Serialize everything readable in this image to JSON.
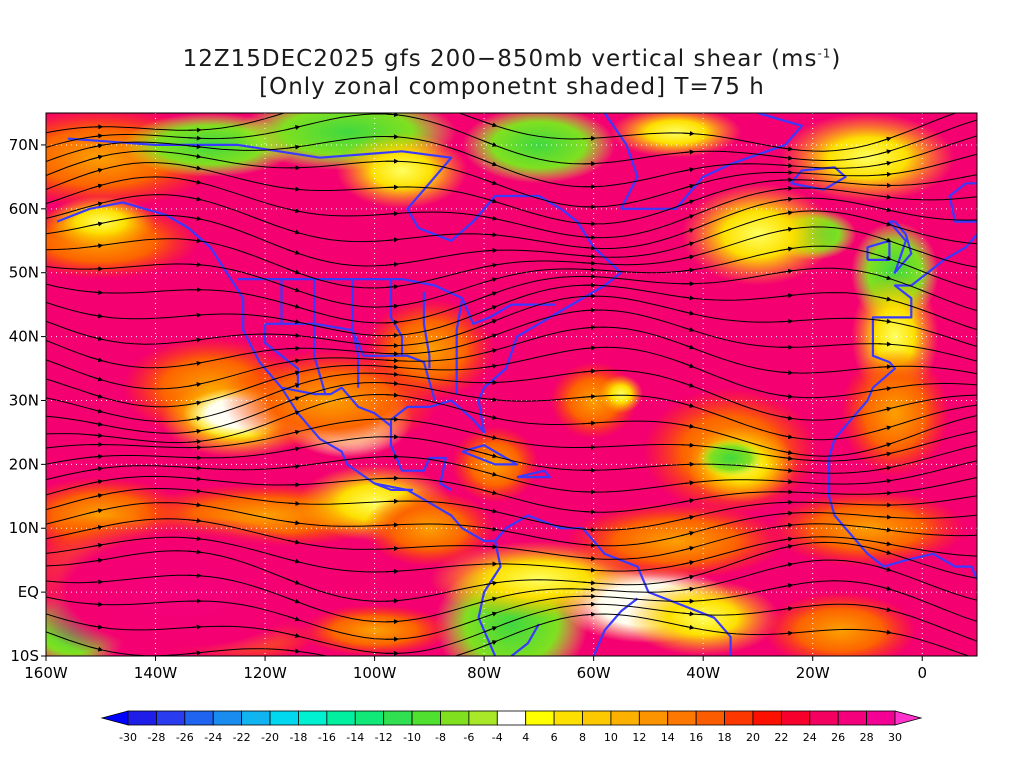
{
  "title": {
    "line1_prefix": "12Z15DEC2025 gfs 200−850mb vertical shear (ms",
    "line1_sup": "-1",
    "line1_suffix": ")",
    "line2": "[Only zonal componetnt shaded] T=75 h"
  },
  "map": {
    "lon_range": [
      -160,
      10
    ],
    "lat_range": [
      -10,
      75
    ],
    "lon_ticks": [
      {
        "value": -160,
        "label": "160W"
      },
      {
        "value": -140,
        "label": "140W"
      },
      {
        "value": -120,
        "label": "120W"
      },
      {
        "value": -100,
        "label": "100W"
      },
      {
        "value": -80,
        "label": "80W"
      },
      {
        "value": -60,
        "label": "60W"
      },
      {
        "value": -40,
        "label": "40W"
      },
      {
        "value": -20,
        "label": "20W"
      },
      {
        "value": 0,
        "label": "0"
      }
    ],
    "lat_ticks": [
      {
        "value": 70,
        "label": "70N"
      },
      {
        "value": 60,
        "label": "60N"
      },
      {
        "value": 50,
        "label": "50N"
      },
      {
        "value": 40,
        "label": "40N"
      },
      {
        "value": 30,
        "label": "30N"
      },
      {
        "value": 20,
        "label": "20N"
      },
      {
        "value": 10,
        "label": "10N"
      },
      {
        "value": 0,
        "label": "EQ"
      },
      {
        "value": -10,
        "label": "10S"
      }
    ],
    "grid": true,
    "coastline_color": "#3a3aff",
    "contour_color": "#9a3c9a",
    "streamline_color": "#000000"
  },
  "colorbar": {
    "labels": [
      "-30",
      "-28",
      "-26",
      "-24",
      "-22",
      "-20",
      "-18",
      "-16",
      "-14",
      "-12",
      "-10",
      "-8",
      "-6",
      "-4",
      "4",
      "6",
      "8",
      "10",
      "12",
      "14",
      "16",
      "18",
      "20",
      "22",
      "24",
      "26",
      "28",
      "30"
    ],
    "colors": [
      "#1e1ee8",
      "#2a3cf0",
      "#1e64f0",
      "#1a8cf0",
      "#10b4f0",
      "#00d8f0",
      "#00f0d2",
      "#00f0a0",
      "#10e878",
      "#30e050",
      "#50e030",
      "#80e020",
      "#a8e828",
      "#ffffff",
      "#ffff00",
      "#fde000",
      "#fcc800",
      "#fcb000",
      "#fc9400",
      "#fc7800",
      "#fc5c00",
      "#fc3800",
      "#fc1000",
      "#f8002c",
      "#f40060",
      "#f4007c",
      "#f40094"
    ],
    "under_color": "#0000ff",
    "over_color": "#ff33cc"
  }
}
